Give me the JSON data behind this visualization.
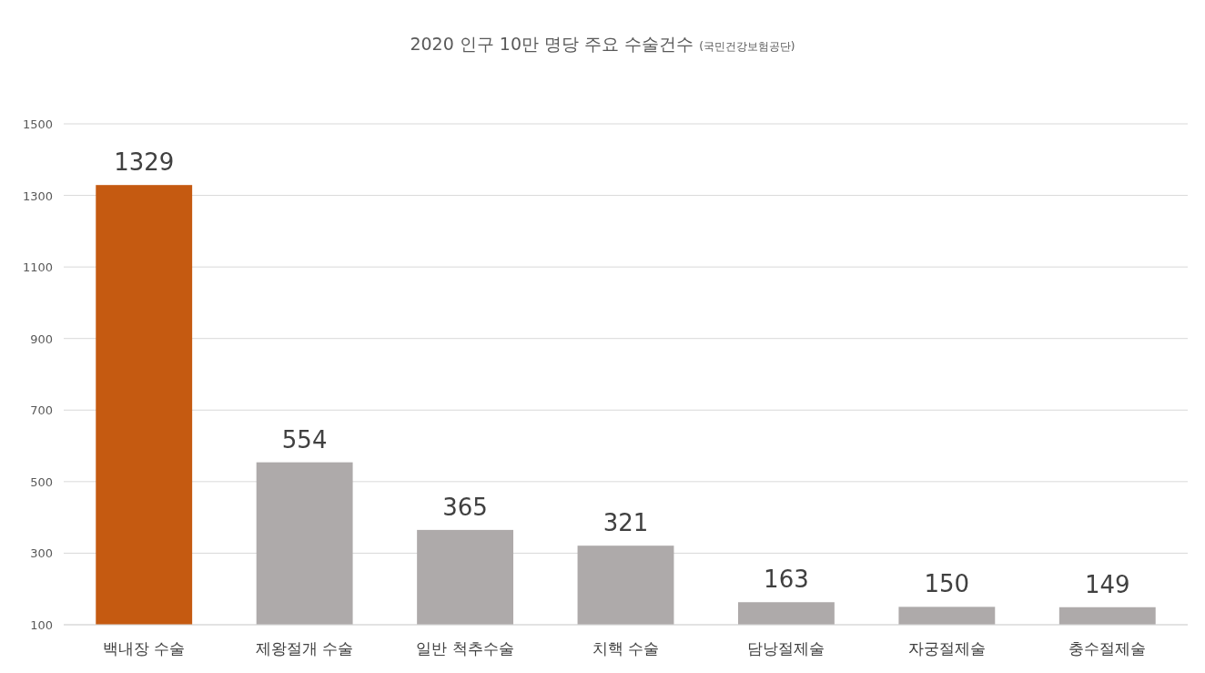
{
  "chart_data": {
    "type": "bar",
    "title": "2020 인구 10만 명당 주요 수술건수",
    "subtitle": "(국민건강보험공단)",
    "categories": [
      "백내장 수술",
      "제왕절개 수술",
      "일반 척추수술",
      "치핵 수술",
      "담낭절제술",
      "자궁절제술",
      "충수절제술"
    ],
    "values": [
      1329,
      554,
      365,
      321,
      163,
      150,
      149
    ],
    "colors": [
      "#c55a11",
      "#aeaaaa",
      "#aeaaaa",
      "#aeaaaa",
      "#aeaaaa",
      "#aeaaaa",
      "#aeaaaa"
    ],
    "ylim": [
      100,
      1500
    ],
    "yticks": [
      100,
      300,
      500,
      700,
      900,
      1100,
      1300,
      1500
    ],
    "grid": "y",
    "data_labels": true
  }
}
